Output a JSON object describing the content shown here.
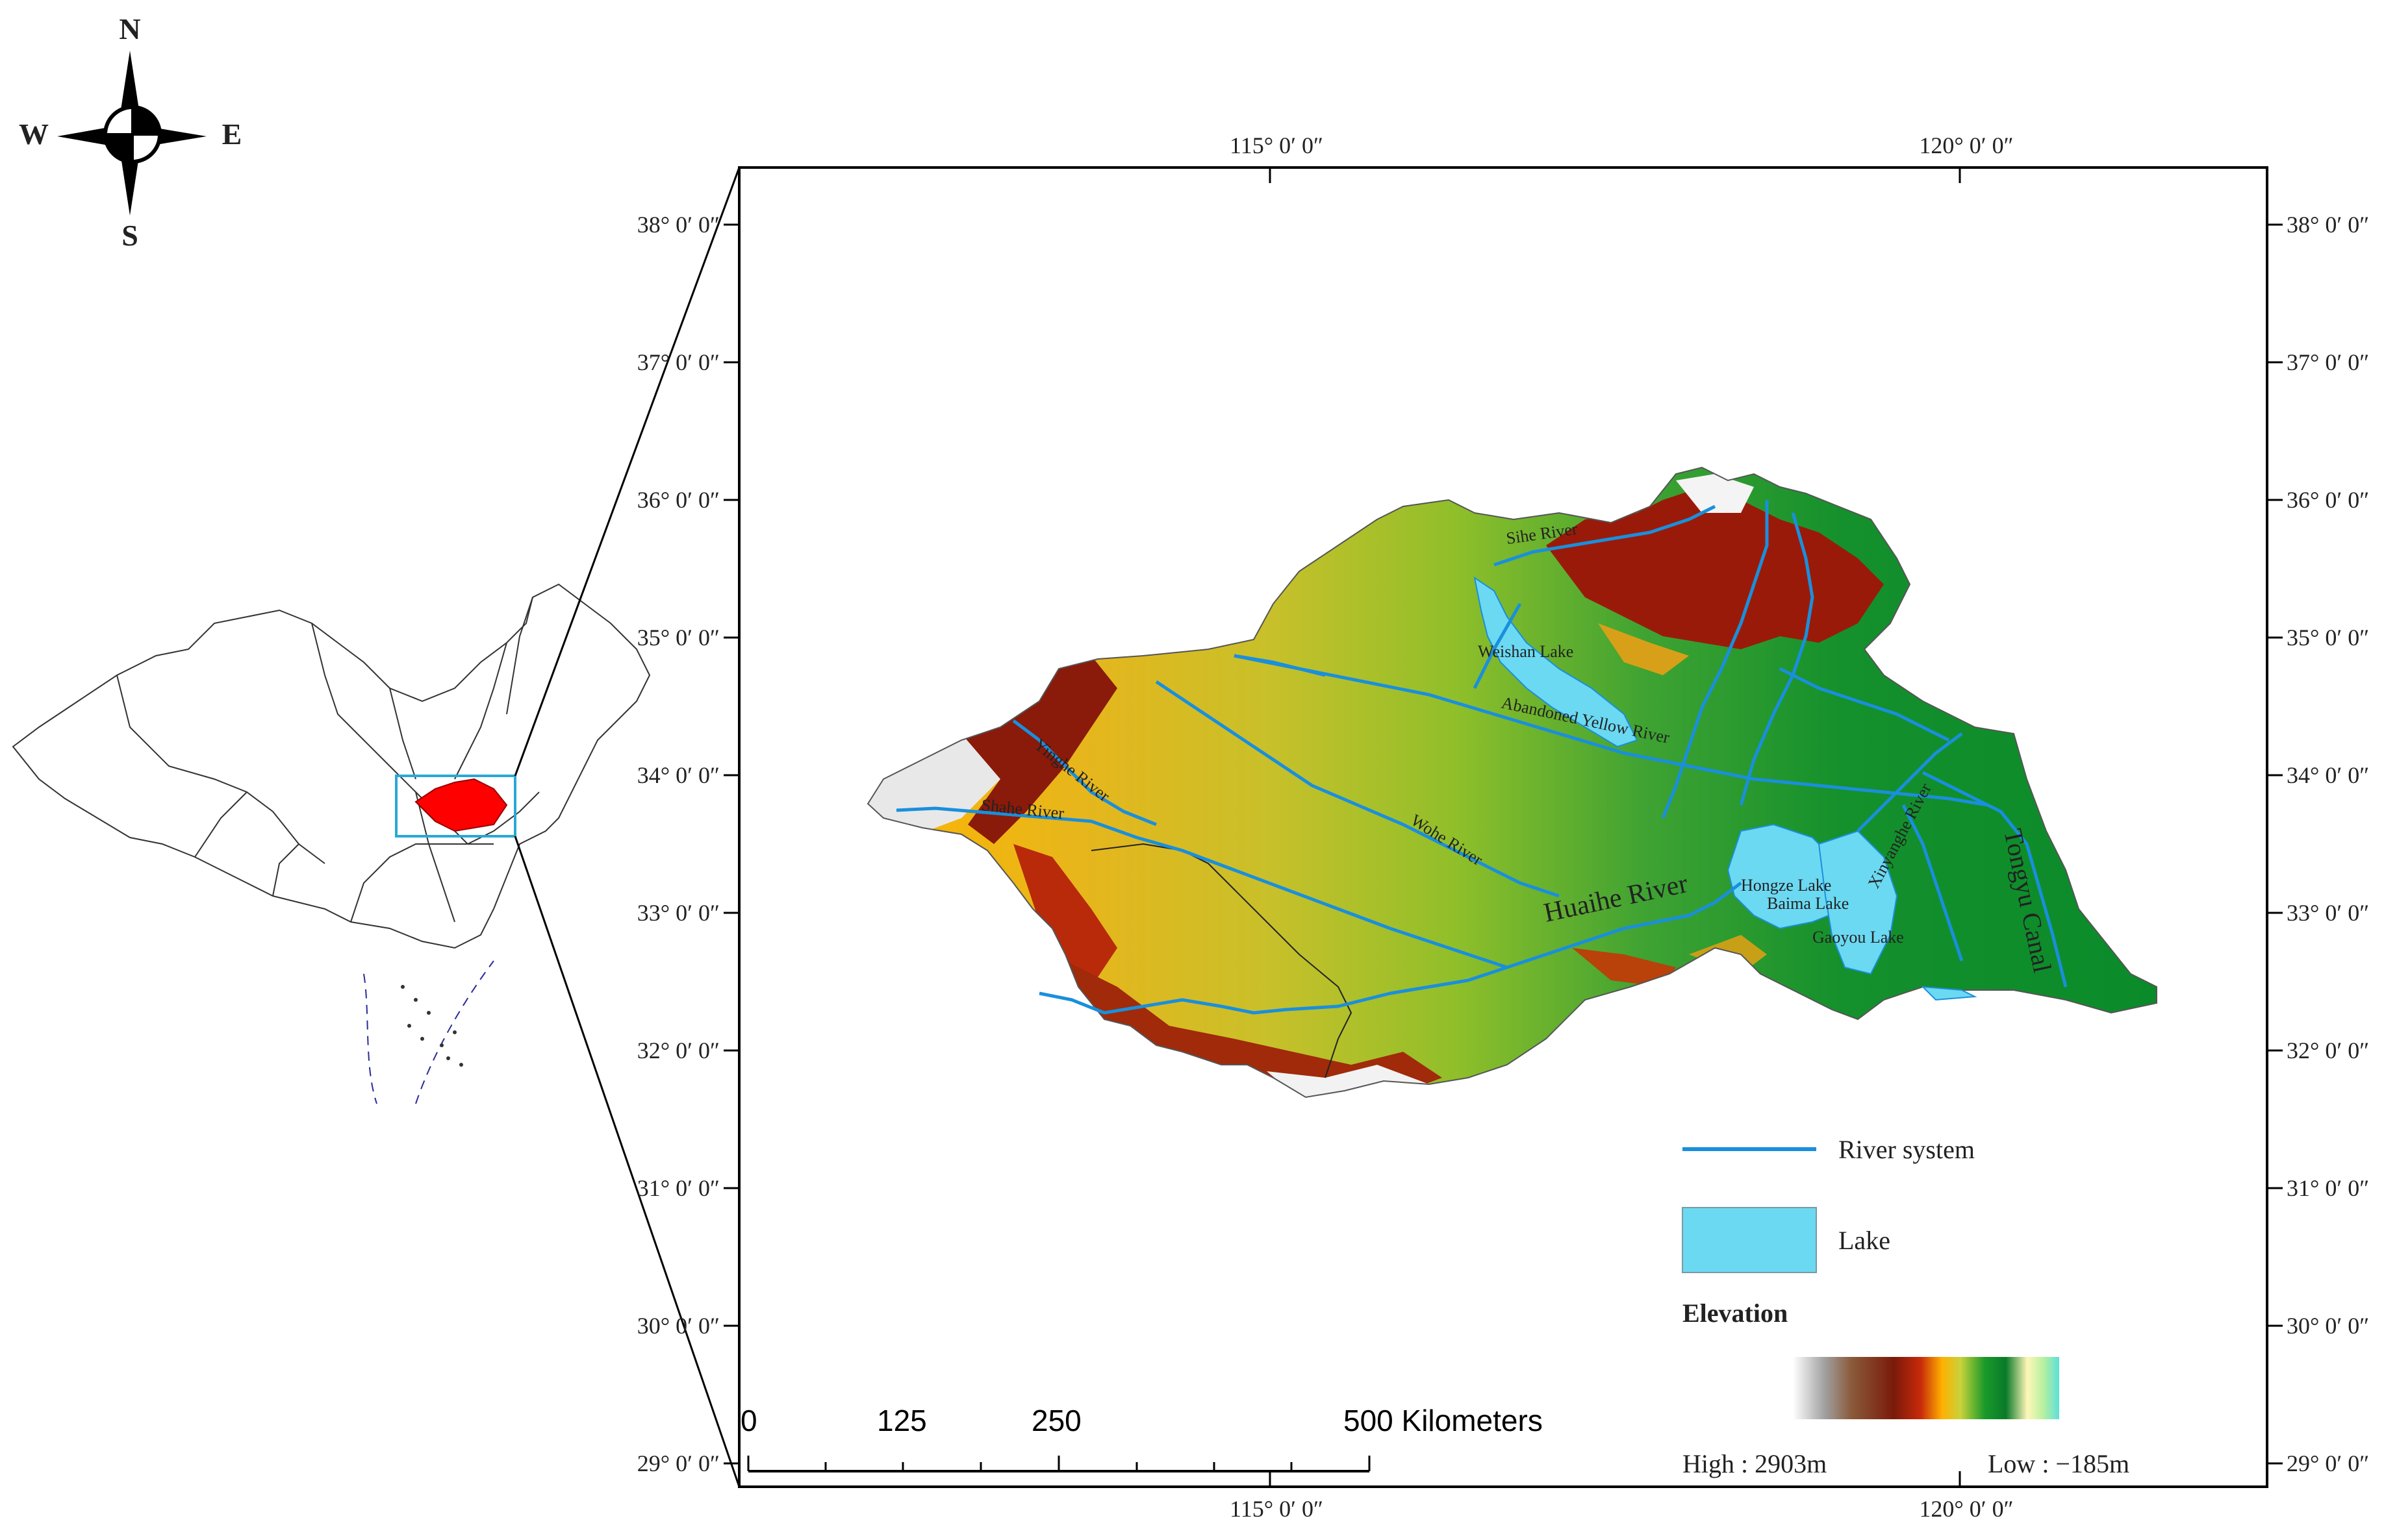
{
  "compass": {
    "n": "N",
    "s": "S",
    "e": "E",
    "w": "W"
  },
  "top_lon_labels": [
    "115° 0′ 0″",
    "120° 0′ 0″"
  ],
  "bottom_lon_labels": [
    "115° 0′ 0″",
    "120° 0′ 0″"
  ],
  "lat_labels": [
    "38° 0′ 0″",
    "37° 0′ 0″",
    "36° 0′ 0″",
    "35° 0′ 0″",
    "34° 0′ 0″",
    "33° 0′ 0″",
    "32° 0′ 0″",
    "31° 0′ 0″",
    "30° 0′ 0″",
    "29° 0′ 0″"
  ],
  "places": {
    "sihe": "Sihe River",
    "weishan": "Weishan Lake",
    "abandoned": "Abandoned Yellow River",
    "yinghe": "Yinghe River",
    "shahe": "Shahe River",
    "wohe": "Wohe River",
    "huaihe": "Huaihe River",
    "hongze": "Hongze Lake",
    "baima": "Baima Lake",
    "gaoyou": "Gaoyou Lake",
    "xinyihe": "Xinyanghe River",
    "tongyu": "Tongyu Canal"
  },
  "scalebar": {
    "ticks": [
      "0",
      "125",
      "250",
      "500 Kilometers"
    ]
  },
  "legend": {
    "river": "River system",
    "lake": "Lake",
    "elevation_title": "Elevation",
    "high": "High : 2903m",
    "low": "Low : −185m"
  },
  "colors": {
    "river": "#1a8fdc",
    "lake": "#6cd9f2",
    "focus_region": "#ff0000",
    "inset_box": "#29a8d6"
  }
}
